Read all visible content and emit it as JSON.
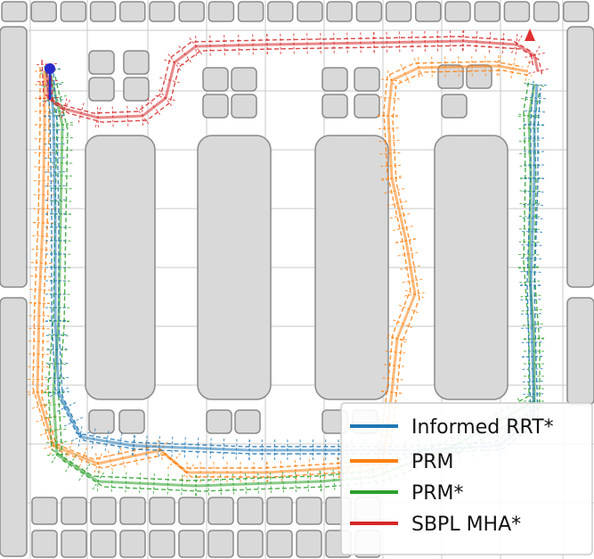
{
  "legend": {
    "items": [
      {
        "key": "informed_rrt",
        "label": "Informed RRT*",
        "color": "#1f77b4"
      },
      {
        "key": "prm",
        "label": "PRM",
        "color": "#ff7f0e"
      },
      {
        "key": "prm_star",
        "label": "PRM*",
        "color": "#2ca02c"
      },
      {
        "key": "sbpl_mha",
        "label": "SBPL MHA*",
        "color": "#d62728"
      }
    ]
  },
  "colors": {
    "obstacle_fill": "#d9d9d9",
    "obstacle_stroke": "#8a8a8a",
    "grid": "#c8c8c8",
    "start_marker": "#2a2acc",
    "goal_marker": "#e03030"
  }
}
